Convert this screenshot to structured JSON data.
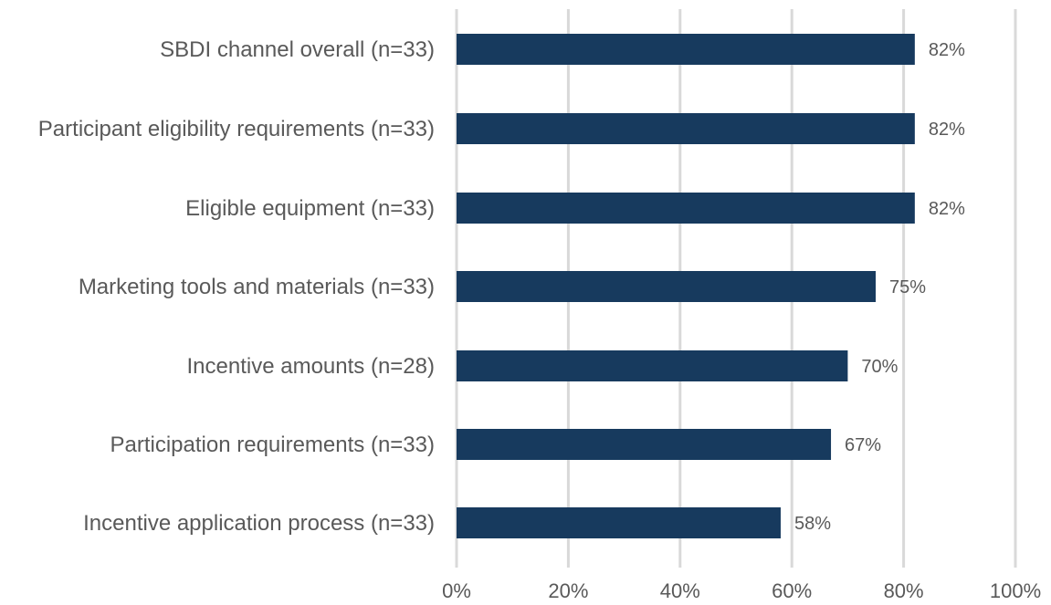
{
  "chart_data": {
    "type": "bar",
    "orientation": "horizontal",
    "categories": [
      "SBDI channel overall (n=33)",
      "Participant eligibility requirements (n=33)",
      "Eligible equipment (n=33)",
      "Marketing tools and materials (n=33)",
      "Incentive amounts (n=28)",
      "Participation requirements (n=33)",
      "Incentive application process (n=33)"
    ],
    "values": [
      82,
      82,
      82,
      75,
      70,
      67,
      58
    ],
    "value_labels": [
      "82%",
      "82%",
      "82%",
      "75%",
      "70%",
      "67%",
      "58%"
    ],
    "xlim": [
      0,
      100
    ],
    "x_ticks": [
      0,
      20,
      40,
      60,
      80,
      100
    ],
    "x_tick_labels": [
      "0%",
      "20%",
      "40%",
      "60%",
      "80%",
      "100%"
    ],
    "grid": true,
    "legend": "none",
    "title": "",
    "xlabel": "",
    "ylabel": "",
    "colors": {
      "bar": "#173a5e",
      "grid": "#d9d9d9",
      "text": "#595959"
    }
  }
}
